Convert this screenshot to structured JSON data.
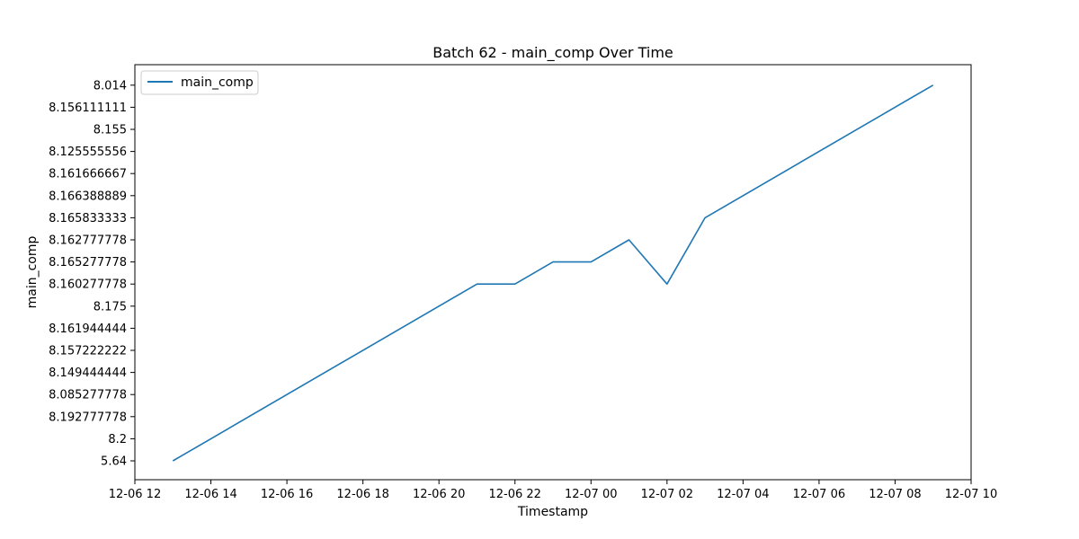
{
  "chart_data": {
    "type": "line",
    "title": "Batch 62 - main_comp Over Time",
    "xlabel": "Timestamp",
    "ylabel": "main_comp",
    "grid": false,
    "legend_position": "top-left",
    "y_categorical": true,
    "y_categories": [
      "5.64",
      "8.2",
      "8.192777778",
      "8.085277778",
      "8.149444444",
      "8.157222222",
      "8.161944444",
      "8.175",
      "8.160277778",
      "8.165277778",
      "8.162777778",
      "8.165833333",
      "8.166388889",
      "8.161666667",
      "8.125555556",
      "8.155",
      "8.156111111",
      "8.014"
    ],
    "x_ticks": [
      "12-06 12",
      "12-06 14",
      "12-06 16",
      "12-06 18",
      "12-06 20",
      "12-06 22",
      "12-07 00",
      "12-07 02",
      "12-07 04",
      "12-07 06",
      "12-07 08",
      "12-07 10"
    ],
    "x_range": [
      "12-06 12",
      "12-07 10"
    ],
    "series": [
      {
        "name": "main_comp",
        "color": "#1f77b4",
        "x": [
          "12-06 13",
          "12-06 21",
          "12-06 22",
          "12-06 23",
          "12-07 00",
          "12-07 01",
          "12-07 02",
          "12-07 03",
          "12-07 09"
        ],
        "y": [
          "5.64",
          "8.160277778",
          "8.160277778",
          "8.165277778",
          "8.165277778",
          "8.162777778",
          "8.160277778",
          "8.165833333",
          "8.014"
        ]
      }
    ]
  }
}
